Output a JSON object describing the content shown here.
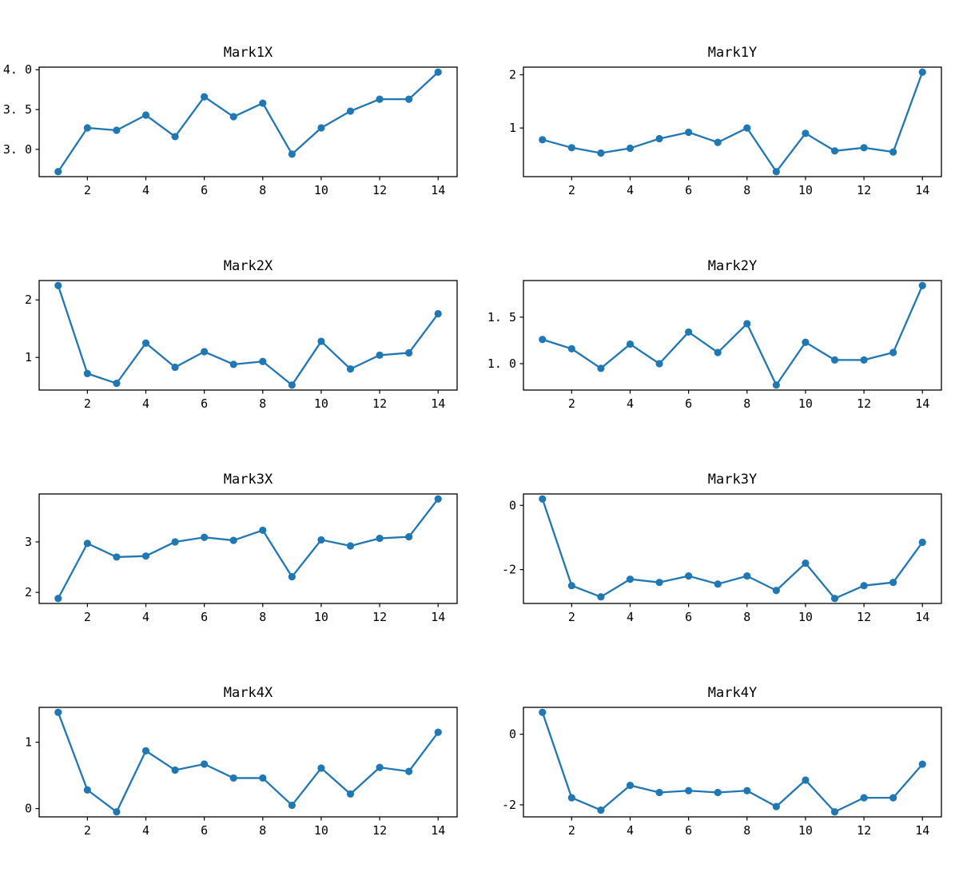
{
  "figure": {
    "background": "#ffffff",
    "accent_color": "#1f77b4",
    "axes_color": "#000000",
    "grid": false,
    "legend": null,
    "layout": "4 rows x 2 columns of line subplots"
  },
  "chart_data": [
    {
      "type": "line",
      "title": "Mark1X",
      "x": [
        1,
        2,
        3,
        4,
        5,
        6,
        7,
        8,
        9,
        10,
        11,
        12,
        13,
        14
      ],
      "y": [
        2.72,
        3.27,
        3.24,
        3.43,
        3.16,
        3.66,
        3.41,
        3.58,
        2.94,
        3.27,
        3.48,
        3.63,
        3.63,
        3.97
      ],
      "xlim": [
        0.35,
        14.65
      ],
      "ylim": [
        2.6575,
        4.0325
      ],
      "xticks": [
        {
          "v": 2,
          "label": "2"
        },
        {
          "v": 4,
          "label": "4"
        },
        {
          "v": 6,
          "label": "6"
        },
        {
          "v": 8,
          "label": "8"
        },
        {
          "v": 10,
          "label": "10"
        },
        {
          "v": 12,
          "label": "12"
        },
        {
          "v": 14,
          "label": "14"
        }
      ],
      "yticks": [
        {
          "v": 3.0,
          "label": "3. 0"
        },
        {
          "v": 3.5,
          "label": "3. 5"
        },
        {
          "v": 4.0,
          "label": "4. 0"
        }
      ],
      "color": "#1f77b4",
      "marker": "circle"
    },
    {
      "type": "line",
      "title": "Mark1Y",
      "x": [
        1,
        2,
        3,
        4,
        5,
        6,
        7,
        8,
        9,
        10,
        11,
        12,
        13,
        14
      ],
      "y": [
        0.78,
        0.63,
        0.53,
        0.62,
        0.8,
        0.92,
        0.73,
        1.0,
        0.18,
        0.9,
        0.57,
        0.63,
        0.55,
        2.05
      ],
      "xlim": [
        0.35,
        14.65
      ],
      "ylim": [
        0.0865,
        2.1435
      ],
      "xticks": [
        {
          "v": 2,
          "label": "2"
        },
        {
          "v": 4,
          "label": "4"
        },
        {
          "v": 6,
          "label": "6"
        },
        {
          "v": 8,
          "label": "8"
        },
        {
          "v": 10,
          "label": "10"
        },
        {
          "v": 12,
          "label": "12"
        },
        {
          "v": 14,
          "label": "14"
        }
      ],
      "yticks": [
        {
          "v": 1,
          "label": "1"
        },
        {
          "v": 2,
          "label": "2"
        }
      ],
      "color": "#1f77b4",
      "marker": "circle"
    },
    {
      "type": "line",
      "title": "Mark2X",
      "x": [
        1,
        2,
        3,
        4,
        5,
        6,
        7,
        8,
        9,
        10,
        11,
        12,
        13,
        14
      ],
      "y": [
        2.25,
        0.72,
        0.55,
        1.25,
        0.83,
        1.1,
        0.88,
        0.93,
        0.52,
        1.28,
        0.8,
        1.04,
        1.08,
        1.76
      ],
      "xlim": [
        0.35,
        14.65
      ],
      "ylim": [
        0.4335,
        2.3365
      ],
      "xticks": [
        {
          "v": 2,
          "label": "2"
        },
        {
          "v": 4,
          "label": "4"
        },
        {
          "v": 6,
          "label": "6"
        },
        {
          "v": 8,
          "label": "8"
        },
        {
          "v": 10,
          "label": "10"
        },
        {
          "v": 12,
          "label": "12"
        },
        {
          "v": 14,
          "label": "14"
        }
      ],
      "yticks": [
        {
          "v": 1,
          "label": "1"
        },
        {
          "v": 2,
          "label": "2"
        }
      ],
      "color": "#1f77b4",
      "marker": "circle"
    },
    {
      "type": "line",
      "title": "Mark2Y",
      "x": [
        1,
        2,
        3,
        4,
        5,
        6,
        7,
        8,
        9,
        10,
        11,
        12,
        13,
        14
      ],
      "y": [
        1.26,
        1.16,
        0.95,
        1.21,
        1.0,
        1.34,
        1.12,
        1.43,
        0.77,
        1.23,
        1.04,
        1.04,
        1.12,
        1.84
      ],
      "xlim": [
        0.35,
        14.65
      ],
      "ylim": [
        0.7165,
        1.8935
      ],
      "xticks": [
        {
          "v": 2,
          "label": "2"
        },
        {
          "v": 4,
          "label": "4"
        },
        {
          "v": 6,
          "label": "6"
        },
        {
          "v": 8,
          "label": "8"
        },
        {
          "v": 10,
          "label": "10"
        },
        {
          "v": 12,
          "label": "12"
        },
        {
          "v": 14,
          "label": "14"
        }
      ],
      "yticks": [
        {
          "v": 1.0,
          "label": "1. 0"
        },
        {
          "v": 1.5,
          "label": "1. 5"
        }
      ],
      "color": "#1f77b4",
      "marker": "circle"
    },
    {
      "type": "line",
      "title": "Mark3X",
      "x": [
        1,
        2,
        3,
        4,
        5,
        6,
        7,
        8,
        9,
        10,
        11,
        12,
        13,
        14
      ],
      "y": [
        1.88,
        2.97,
        2.7,
        2.72,
        3.0,
        3.09,
        3.03,
        3.23,
        2.31,
        3.04,
        2.92,
        3.07,
        3.1,
        3.85
      ],
      "xlim": [
        0.35,
        14.65
      ],
      "ylim": [
        1.7815,
        3.9485
      ],
      "xticks": [
        {
          "v": 2,
          "label": "2"
        },
        {
          "v": 4,
          "label": "4"
        },
        {
          "v": 6,
          "label": "6"
        },
        {
          "v": 8,
          "label": "8"
        },
        {
          "v": 10,
          "label": "10"
        },
        {
          "v": 12,
          "label": "12"
        },
        {
          "v": 14,
          "label": "14"
        }
      ],
      "yticks": [
        {
          "v": 2,
          "label": "2"
        },
        {
          "v": 3,
          "label": "3"
        }
      ],
      "color": "#1f77b4",
      "marker": "circle"
    },
    {
      "type": "line",
      "title": "Mark3Y",
      "x": [
        1,
        2,
        3,
        4,
        5,
        6,
        7,
        8,
        9,
        10,
        11,
        12,
        13,
        14
      ],
      "y": [
        0.2,
        -2.5,
        -2.85,
        -2.3,
        -2.4,
        -2.2,
        -2.45,
        -2.2,
        -2.65,
        -1.8,
        -2.9,
        -2.5,
        -2.4,
        -1.15
      ],
      "xlim": [
        0.35,
        14.65
      ],
      "ylim": [
        -3.055,
        0.355
      ],
      "xticks": [
        {
          "v": 2,
          "label": "2"
        },
        {
          "v": 4,
          "label": "4"
        },
        {
          "v": 6,
          "label": "6"
        },
        {
          "v": 8,
          "label": "8"
        },
        {
          "v": 10,
          "label": "10"
        },
        {
          "v": 12,
          "label": "12"
        },
        {
          "v": 14,
          "label": "14"
        }
      ],
      "yticks": [
        {
          "v": -2,
          "label": "-2"
        },
        {
          "v": 0,
          "label": "0"
        }
      ],
      "color": "#1f77b4",
      "marker": "circle"
    },
    {
      "type": "line",
      "title": "Mark4X",
      "x": [
        1,
        2,
        3,
        4,
        5,
        6,
        7,
        8,
        9,
        10,
        11,
        12,
        13,
        14
      ],
      "y": [
        1.45,
        0.28,
        -0.05,
        0.87,
        0.58,
        0.67,
        0.46,
        0.46,
        0.05,
        0.61,
        0.22,
        0.62,
        0.56,
        1.15
      ],
      "xlim": [
        0.35,
        14.65
      ],
      "ylim": [
        -0.125,
        1.525
      ],
      "xticks": [
        {
          "v": 2,
          "label": "2"
        },
        {
          "v": 4,
          "label": "4"
        },
        {
          "v": 6,
          "label": "6"
        },
        {
          "v": 8,
          "label": "8"
        },
        {
          "v": 10,
          "label": "10"
        },
        {
          "v": 12,
          "label": "12"
        },
        {
          "v": 14,
          "label": "14"
        }
      ],
      "yticks": [
        {
          "v": 0,
          "label": "0"
        },
        {
          "v": 1,
          "label": "1"
        }
      ],
      "color": "#1f77b4",
      "marker": "circle"
    },
    {
      "type": "line",
      "title": "Mark4Y",
      "x": [
        1,
        2,
        3,
        4,
        5,
        6,
        7,
        8,
        9,
        10,
        11,
        12,
        13,
        14
      ],
      "y": [
        0.62,
        -1.8,
        -2.15,
        -1.45,
        -1.65,
        -1.6,
        -1.65,
        -1.6,
        -2.05,
        -1.3,
        -2.2,
        -1.8,
        -1.8,
        -0.85
      ],
      "xlim": [
        0.35,
        14.65
      ],
      "ylim": [
        -2.341,
        0.761
      ],
      "xticks": [
        {
          "v": 2,
          "label": "2"
        },
        {
          "v": 4,
          "label": "4"
        },
        {
          "v": 6,
          "label": "6"
        },
        {
          "v": 8,
          "label": "8"
        },
        {
          "v": 10,
          "label": "10"
        },
        {
          "v": 12,
          "label": "12"
        },
        {
          "v": 14,
          "label": "14"
        }
      ],
      "yticks": [
        {
          "v": -2,
          "label": "-2"
        },
        {
          "v": 0,
          "label": "0"
        }
      ],
      "color": "#1f77b4",
      "marker": "circle"
    }
  ]
}
